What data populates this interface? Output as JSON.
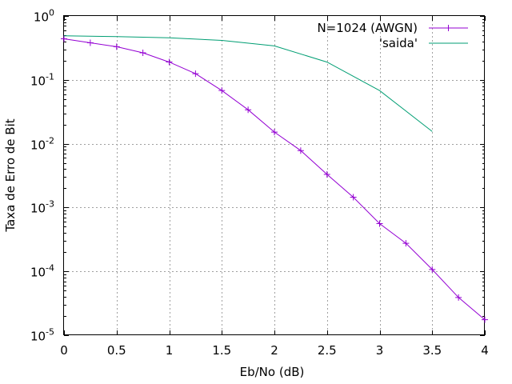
{
  "chart_data": {
    "type": "line",
    "xlabel": "Eb/No (dB)",
    "ylabel": "Taxa de Erro de Bit",
    "xlim": [
      0,
      4
    ],
    "ylim": [
      1e-05,
      1
    ],
    "yscale": "log",
    "grid": true,
    "legend_position": "top-right",
    "x_ticks": [
      "0",
      "0.5",
      "1",
      "1.5",
      "2",
      "2.5",
      "3",
      "3.5",
      "4"
    ],
    "y_ticks": [
      {
        "base": "10",
        "exp": "0"
      },
      {
        "base": "10",
        "exp": "-1"
      },
      {
        "base": "10",
        "exp": "-2"
      },
      {
        "base": "10",
        "exp": "-3"
      },
      {
        "base": "10",
        "exp": "-4"
      },
      {
        "base": "10",
        "exp": "-5"
      }
    ],
    "series": [
      {
        "name": "N=1024 (AWGN)",
        "color": "#9400d3",
        "marker": "plus",
        "x": [
          0,
          0.25,
          0.5,
          0.75,
          1,
          1.25,
          1.5,
          1.75,
          2,
          2.25,
          2.5,
          2.75,
          3,
          3.25,
          3.5,
          3.75,
          4
        ],
        "y": [
          0.44,
          0.38,
          0.33,
          0.265,
          0.19,
          0.125,
          0.068,
          0.034,
          0.0152,
          0.0078,
          0.0033,
          0.00145,
          0.00056,
          0.000275,
          0.000107,
          3.9e-05,
          1.75e-05
        ]
      },
      {
        "name": "'saida'",
        "color": "#009e73",
        "marker": "none",
        "x": [
          0,
          0.5,
          1,
          1.5,
          2,
          2.5,
          3,
          3.5
        ],
        "y": [
          0.49,
          0.475,
          0.455,
          0.415,
          0.34,
          0.19,
          0.068,
          0.0155
        ]
      }
    ]
  }
}
